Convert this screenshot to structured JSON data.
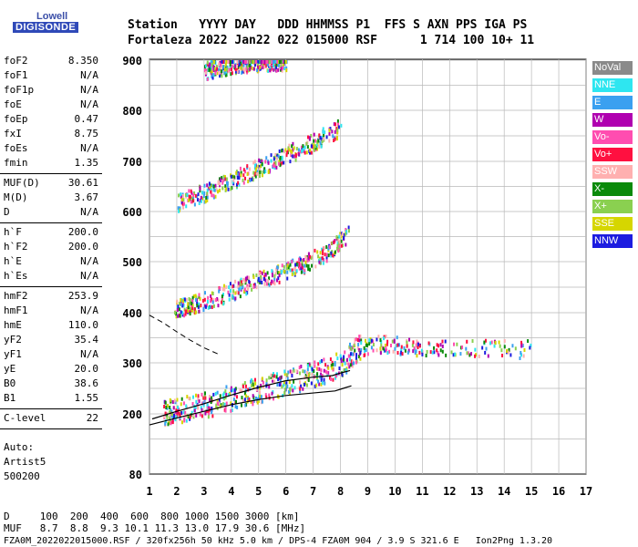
{
  "logo": {
    "line1": "Lowell",
    "line2": "DIGISONDE"
  },
  "header": {
    "line1": "Station   YYYY DAY   DDD HHMMSS P1  FFS S AXN PPS IGA PS",
    "line2": "Fortaleza 2022 Jan22 022 015000 RSF      1 714 100 10+ 11"
  },
  "params": [
    {
      "group": [
        {
          "k": "foF2",
          "v": "8.350"
        },
        {
          "k": "foF1",
          "v": "N/A"
        },
        {
          "k": "foF1p",
          "v": "N/A"
        },
        {
          "k": "foE",
          "v": "N/A"
        },
        {
          "k": "foEp",
          "v": "0.47"
        },
        {
          "k": "fxI",
          "v": "8.75"
        },
        {
          "k": "foEs",
          "v": "N/A"
        },
        {
          "k": "fmin",
          "v": "1.35"
        }
      ]
    },
    {
      "group": [
        {
          "k": "MUF(D)",
          "v": "30.61"
        },
        {
          "k": "M(D)",
          "v": "3.67"
        },
        {
          "k": "D",
          "v": "N/A"
        }
      ]
    },
    {
      "group": [
        {
          "k": "h`F",
          "v": "200.0"
        },
        {
          "k": "h`F2",
          "v": "200.0"
        },
        {
          "k": "h`E",
          "v": "N/A"
        },
        {
          "k": "h`Es",
          "v": "N/A"
        }
      ]
    },
    {
      "group": [
        {
          "k": "hmF2",
          "v": "253.9"
        },
        {
          "k": "hmF1",
          "v": "N/A"
        },
        {
          "k": "hmE",
          "v": "110.0"
        },
        {
          "k": "yF2",
          "v": "35.4"
        },
        {
          "k": "yF1",
          "v": "N/A"
        },
        {
          "k": "yE",
          "v": "20.0"
        },
        {
          "k": "B0",
          "v": "38.6"
        },
        {
          "k": "B1",
          "v": "1.55"
        }
      ]
    },
    {
      "group": [
        {
          "k": "C-level",
          "v": "22"
        }
      ]
    }
  ],
  "auto": {
    "l1": "Auto:",
    "l2": "Artist5",
    "l3": "500200"
  },
  "legend": [
    {
      "label": "NoVal",
      "color": "#8a8a8a"
    },
    {
      "label": "NNE",
      "color": "#2ee6f0"
    },
    {
      "label": "E",
      "color": "#3aa0f0"
    },
    {
      "label": "W",
      "color": "#b000b0"
    },
    {
      "label": "Vo-",
      "color": "#ff4db0"
    },
    {
      "label": "Vo+",
      "color": "#ff1040"
    },
    {
      "label": "SSW",
      "color": "#ffb0b0"
    },
    {
      "label": "X-",
      "color": "#0a8a0a"
    },
    {
      "label": "X+",
      "color": "#8ad050"
    },
    {
      "label": "SSE",
      "color": "#d6d600"
    },
    {
      "label": "NNW",
      "color": "#1c1ce0"
    }
  ],
  "footer": {
    "d_row": "D     100  200  400  600  800 1000 1500 3000 [km]",
    "muf_row": "MUF   8.7  8.8  9.3 10.1 11.3 13.0 17.9 30.6 [MHz]",
    "info_row": "FZA0M_2022022015000.RSF / 320fx256h 50 kHz 5.0 km / DPS-4 FZA0M 904 / 3.9 S 321.6 E   Ion2Png 1.3.20"
  },
  "chart_data": {
    "type": "scatter",
    "xlim": [
      1,
      17
    ],
    "ylim": [
      80,
      900
    ],
    "x_ticks": [
      1,
      2,
      3,
      4,
      5,
      6,
      7,
      8,
      9,
      10,
      11,
      12,
      13,
      14,
      15,
      16,
      17
    ],
    "y_tick_labels": [
      "80",
      "200",
      "300",
      "400",
      "500",
      "600",
      "700",
      "800",
      "900"
    ],
    "y_tick_values": [
      80,
      200,
      300,
      400,
      500,
      600,
      700,
      800,
      900
    ],
    "profile_curve": {
      "freq": [
        1.1,
        2.0,
        3.0,
        4.0,
        5.0,
        6.0,
        7.0,
        7.7,
        8.0,
        8.35
      ],
      "height": [
        190,
        205,
        220,
        237,
        252,
        265,
        272,
        275,
        280,
        285
      ]
    },
    "profile_curve2": {
      "freq": [
        1.0,
        2.0,
        3.0,
        4.0,
        5.0,
        6.0,
        7.0,
        7.8,
        8.1,
        8.4
      ],
      "height": [
        178,
        192,
        205,
        218,
        228,
        236,
        241,
        245,
        250,
        255
      ]
    },
    "upper_dashed": {
      "freq": [
        1.0,
        1.5,
        2.0,
        2.5,
        3.0,
        3.5
      ],
      "height": [
        395,
        380,
        362,
        345,
        330,
        318
      ]
    },
    "echo_traces": [
      {
        "name": "O1",
        "freq": [
          1.5,
          2.0,
          3.0,
          4.0,
          5.0,
          6.0,
          7.0,
          8.0,
          8.7
        ],
        "height": [
          205,
          210,
          220,
          235,
          250,
          265,
          280,
          300,
          335
        ]
      },
      {
        "name": "O2",
        "freq": [
          1.9,
          2.5,
          3.5,
          4.5,
          5.5,
          6.5,
          7.5,
          8.3
        ],
        "height": [
          410,
          418,
          435,
          455,
          475,
          495,
          520,
          560
        ]
      },
      {
        "name": "O3",
        "freq": [
          2.0,
          3.0,
          4.0,
          5.0,
          6.0,
          7.0,
          8.0
        ],
        "height": [
          620,
          640,
          665,
          690,
          715,
          740,
          770
        ]
      },
      {
        "name": "O4",
        "freq": [
          3.0,
          3.5,
          4.0,
          4.5,
          5.0,
          5.5,
          6.0
        ],
        "height": [
          880,
          888,
          893,
          896,
          898,
          899,
          900
        ]
      },
      {
        "name": "spread",
        "freq": [
          8.6,
          9.0,
          9.5,
          10.0,
          10.5,
          11.0,
          12.0,
          13.0,
          14.0,
          15.0
        ],
        "height": [
          330,
          336,
          340,
          338,
          335,
          334,
          332,
          331,
          330,
          330
        ]
      }
    ]
  }
}
